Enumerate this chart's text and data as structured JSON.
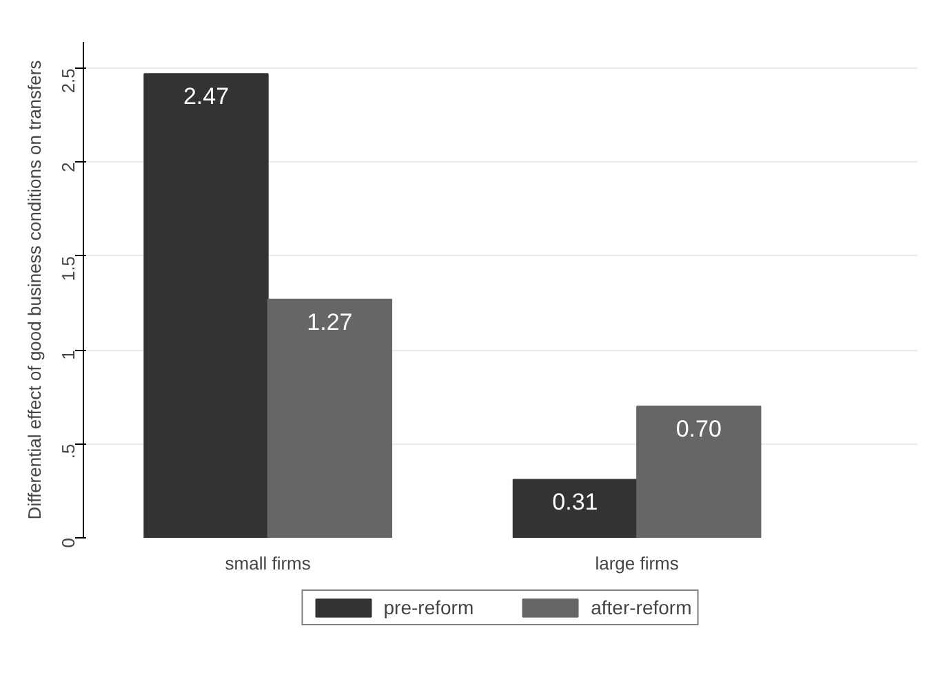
{
  "chart_data": {
    "type": "bar",
    "ylabel": "Differential effect of good business conditions on transfers",
    "categories": [
      "small firms",
      "large firms"
    ],
    "series": [
      {
        "name": "pre-reform",
        "color": "#333333",
        "values": [
          2.47,
          0.31
        ],
        "value_labels": [
          "2.47",
          "0.31"
        ]
      },
      {
        "name": "after-reform",
        "color": "#666666",
        "values": [
          1.27,
          0.7
        ],
        "value_labels": [
          "1.27",
          "0.70"
        ]
      }
    ],
    "ylim": [
      0,
      2.64
    ],
    "yticks": [
      0,
      {
        "value": 0.5,
        "label": ".5"
      },
      1,
      {
        "value": 1.5,
        "label": "1.5"
      },
      2,
      {
        "value": 2.5,
        "label": "2.5"
      }
    ],
    "grid": "y",
    "legend": "bottom"
  }
}
